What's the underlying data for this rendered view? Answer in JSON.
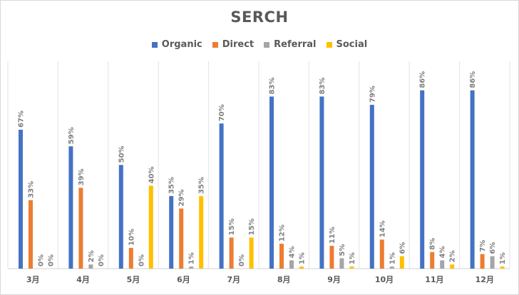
{
  "chart_data": {
    "type": "bar",
    "title": "SERCH",
    "xlabel": "",
    "ylabel": "",
    "ylim": [
      0,
      100
    ],
    "grid": "vertical category separators",
    "legend_position": "top",
    "categories": [
      "3月",
      "4月",
      "5月",
      "6月",
      "7月",
      "8月",
      "9月",
      "10月",
      "11月",
      "12月"
    ],
    "series": [
      {
        "name": "Organic",
        "color": "#4472c4",
        "values": [
          67,
          59,
          50,
          35,
          70,
          83,
          83,
          79,
          86,
          86
        ]
      },
      {
        "name": "Direct",
        "color": "#ed7d31",
        "values": [
          33,
          39,
          10,
          29,
          15,
          12,
          11,
          14,
          8,
          7
        ]
      },
      {
        "name": "Referral",
        "color": "#a5a5a5",
        "values": [
          0,
          2,
          0,
          1,
          0,
          4,
          5,
          1,
          4,
          6
        ]
      },
      {
        "name": "Social",
        "color": "#ffc000",
        "values": [
          0,
          0,
          40,
          35,
          15,
          1,
          1,
          6,
          2,
          1
        ]
      }
    ],
    "value_suffix": "%"
  }
}
